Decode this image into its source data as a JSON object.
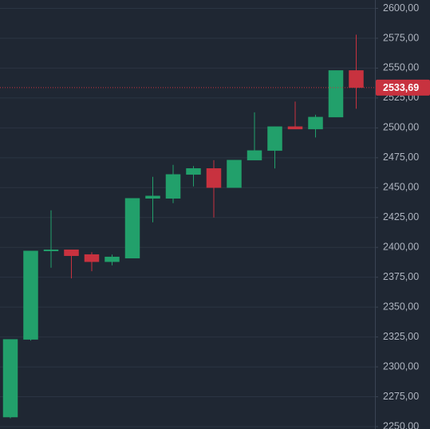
{
  "chart_data": {
    "type": "candlestick",
    "open": [
      2258,
      2323,
      2397,
      2398,
      2394,
      2388,
      2391,
      2441,
      2441,
      2461,
      2466,
      2450,
      2473,
      2481,
      2501,
      2499,
      2509,
      2548
    ],
    "high": [
      2323,
      2397,
      2431,
      2398,
      2396,
      2394,
      2441,
      2459,
      2469,
      2468,
      2473,
      2473,
      2513,
      2501,
      2522,
      2511,
      2548,
      2578
    ],
    "low": [
      2257,
      2322,
      2383,
      2374,
      2380,
      2385,
      2391,
      2421,
      2437,
      2451,
      2425,
      2450,
      2473,
      2466,
      2499,
      2492,
      2509,
      2516
    ],
    "close": [
      2323,
      2397,
      2398,
      2393,
      2388,
      2392,
      2441,
      2443,
      2461,
      2466,
      2450,
      2473,
      2481,
      2501,
      2499,
      2509,
      2548,
      2533.69
    ],
    "up_color": "#22a06b",
    "down_color": "#c8323f",
    "ylim": [
      2248,
      2607
    ],
    "yticks": [
      {
        "value": 2250,
        "label": "2250,00"
      },
      {
        "value": 2275,
        "label": "2275,00"
      },
      {
        "value": 2300,
        "label": "2300,00"
      },
      {
        "value": 2325,
        "label": "2325,00"
      },
      {
        "value": 2350,
        "label": "2350,00"
      },
      {
        "value": 2375,
        "label": "2375,00"
      },
      {
        "value": 2400,
        "label": "2400,00"
      },
      {
        "value": 2425,
        "label": "2425,00"
      },
      {
        "value": 2450,
        "label": "2450,00"
      },
      {
        "value": 2475,
        "label": "2475,00"
      },
      {
        "value": 2500,
        "label": "2500,00"
      },
      {
        "value": 2525,
        "label": "2525,00"
      },
      {
        "value": 2550,
        "label": "2550,00"
      },
      {
        "value": 2575,
        "label": "2575,00"
      },
      {
        "value": 2600,
        "label": "2600,00"
      }
    ],
    "grid": true,
    "last_price": {
      "value": 2533.69,
      "label": "2533,69"
    }
  }
}
